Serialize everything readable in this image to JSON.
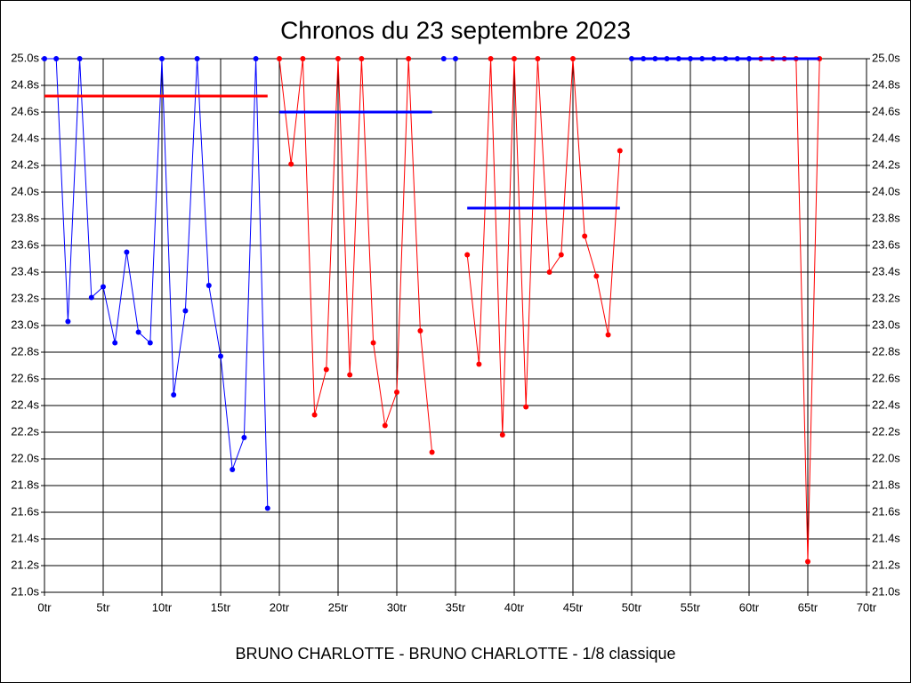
{
  "chart_data": {
    "type": "line",
    "title": "Chronos du 23 septembre 2023",
    "xlabel": "BRUNO CHARLOTTE - BRUNO CHARLOTTE - 1/8 classique",
    "xlim": [
      0,
      70
    ],
    "ylim": [
      21.0,
      25.0
    ],
    "grid": true,
    "xticks": [
      {
        "value": 0,
        "label": "0tr"
      },
      {
        "value": 5,
        "label": "5tr"
      },
      {
        "value": 10,
        "label": "10tr"
      },
      {
        "value": 15,
        "label": "15tr"
      },
      {
        "value": 20,
        "label": "20tr"
      },
      {
        "value": 25,
        "label": "25tr"
      },
      {
        "value": 30,
        "label": "30tr"
      },
      {
        "value": 35,
        "label": "35tr"
      },
      {
        "value": 40,
        "label": "40tr"
      },
      {
        "value": 45,
        "label": "45tr"
      },
      {
        "value": 50,
        "label": "50tr"
      },
      {
        "value": 55,
        "label": "55tr"
      },
      {
        "value": 60,
        "label": "60tr"
      },
      {
        "value": 65,
        "label": "65tr"
      },
      {
        "value": 70,
        "label": "70tr"
      }
    ],
    "yticks": [
      {
        "value": 21.0,
        "label": "21.0s"
      },
      {
        "value": 21.2,
        "label": "21.2s"
      },
      {
        "value": 21.4,
        "label": "21.4s"
      },
      {
        "value": 21.6,
        "label": "21.6s"
      },
      {
        "value": 21.8,
        "label": "21.8s"
      },
      {
        "value": 22.0,
        "label": "22.0s"
      },
      {
        "value": 22.2,
        "label": "22.2s"
      },
      {
        "value": 22.4,
        "label": "22.4s"
      },
      {
        "value": 22.6,
        "label": "22.6s"
      },
      {
        "value": 22.8,
        "label": "22.8s"
      },
      {
        "value": 23.0,
        "label": "23.0s"
      },
      {
        "value": 23.2,
        "label": "23.2s"
      },
      {
        "value": 23.4,
        "label": "23.4s"
      },
      {
        "value": 23.6,
        "label": "23.6s"
      },
      {
        "value": 23.8,
        "label": "23.8s"
      },
      {
        "value": 24.0,
        "label": "24.0s"
      },
      {
        "value": 24.2,
        "label": "24.2s"
      },
      {
        "value": 24.4,
        "label": "24.4s"
      },
      {
        "value": 24.6,
        "label": "24.6s"
      },
      {
        "value": 24.8,
        "label": "24.8s"
      },
      {
        "value": 25.0,
        "label": "25.0s"
      }
    ],
    "series": [
      {
        "color": "#0000ff",
        "x": [
          0,
          1,
          2,
          3,
          4,
          5,
          6,
          7,
          8,
          9,
          10,
          11,
          12,
          13,
          14,
          15,
          16,
          17,
          18,
          19
        ],
        "values": [
          25.0,
          25.0,
          23.03,
          25.0,
          23.21,
          23.29,
          22.87,
          23.55,
          22.95,
          22.87,
          25.0,
          22.48,
          23.11,
          25.0,
          23.3,
          22.77,
          21.92,
          22.16,
          25.0,
          21.63
        ]
      },
      {
        "color": "#ff0000",
        "x": [
          20,
          21,
          22,
          23,
          24,
          25,
          26,
          27,
          28,
          29,
          30,
          31,
          32,
          33
        ],
        "values": [
          25.0,
          24.21,
          25.0,
          22.33,
          22.67,
          25.0,
          22.63,
          25.0,
          22.87,
          22.25,
          22.5,
          25.0,
          22.96,
          22.05
        ]
      },
      {
        "color": "#0000ff",
        "x": [
          34,
          35
        ],
        "values": [
          25.0,
          25.0
        ]
      },
      {
        "color": "#ff0000",
        "x": [
          36,
          37,
          38,
          39,
          40,
          41,
          42,
          43,
          44,
          45,
          46,
          47,
          48,
          49
        ],
        "values": [
          23.53,
          22.71,
          25.0,
          22.18,
          25.0,
          22.39,
          25.0,
          23.4,
          23.53,
          25.0,
          23.67,
          23.37,
          22.93,
          24.31
        ]
      },
      {
        "color": "#0000ff",
        "x": [
          50,
          51,
          52,
          53,
          54,
          55,
          56,
          57,
          58,
          59,
          60
        ],
        "values": [
          25.0,
          25.0,
          25.0,
          25.0,
          25.0,
          25.0,
          25.0,
          25.0,
          25.0,
          25.0,
          25.0
        ]
      },
      {
        "color": "#ff0000",
        "x": [
          61,
          62,
          63,
          64,
          65,
          66
        ],
        "values": [
          25.0,
          25.0,
          25.0,
          25.0,
          21.23,
          25.0
        ]
      }
    ],
    "mean_lines": [
      {
        "color": "#ff0000",
        "x": [
          0,
          19
        ],
        "y": 24.72
      },
      {
        "color": "#0000ff",
        "x": [
          20,
          33
        ],
        "y": 24.6
      },
      {
        "color": "#0000ff",
        "x": [
          36,
          49
        ],
        "y": 23.88
      },
      {
        "color": "#0000ff",
        "x": [
          50,
          66
        ],
        "y": 25.0
      }
    ]
  }
}
